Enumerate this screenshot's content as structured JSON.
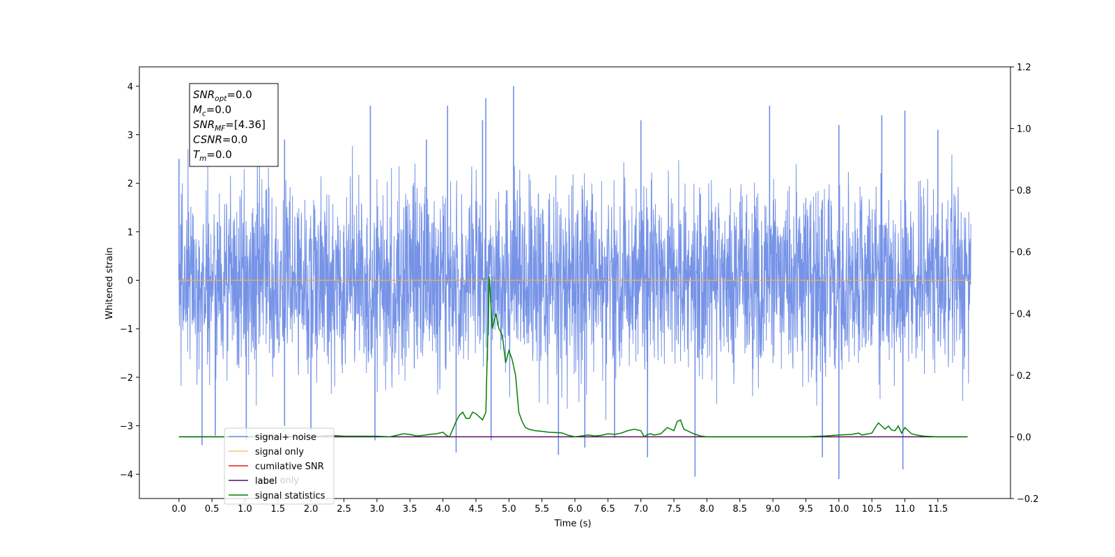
{
  "chart_data": {
    "type": "line",
    "title": "",
    "xlabel": "Time (s)",
    "ylabel": "Whitened strain",
    "y2label": "",
    "xlim": [
      -0.6,
      12.6
    ],
    "ylim": [
      -4.5,
      4.4
    ],
    "y2lim": [
      -0.2,
      1.2
    ],
    "x_ticks": [
      "0.0",
      "0.5",
      "1.0",
      "1.5",
      "2.0",
      "2.5",
      "3.0",
      "3.5",
      "4.0",
      "4.5",
      "5.0",
      "5.5",
      "6.0",
      "6.5",
      "7.0",
      "7.5",
      "8.0",
      "8.5",
      "9.0",
      "9.5",
      "10.0",
      "10.5",
      "11.0",
      "11.5"
    ],
    "y_ticks": [
      "4",
      "3",
      "2",
      "1",
      "0",
      "−1",
      "−2",
      "−3",
      "−4"
    ],
    "y2_ticks": [
      "1.2",
      "1.0",
      "0.8",
      "0.6",
      "0.4",
      "0.2",
      "0.0",
      "−0.2"
    ],
    "grid": false,
    "legend_position": "bottom-left",
    "colors": {
      "signal_noise": "#6f8de6",
      "signal_only": "#f5b041",
      "cumulative_snr": "#e41a1c",
      "label": "#5b0f5f",
      "statistics": "#008000"
    },
    "legend": [
      {
        "name": "signal+ noise",
        "color": "#6f8de6"
      },
      {
        "name": "signal only",
        "color": "#f5c27a"
      },
      {
        "name": "cumilative SNR",
        "color": "#e41a1c"
      },
      {
        "name": "label",
        "color": "#5b0f5f"
      },
      {
        "name": "signal statistics",
        "color": "#008000"
      }
    ],
    "overlapping_legend_text": "label only",
    "info_box": [
      {
        "base": "SNR",
        "sub": "opt",
        "value": "=0.0"
      },
      {
        "base": "M",
        "sub": "c",
        "value": "=0.0"
      },
      {
        "base": "SNR",
        "sub": "MF",
        "value": "=[4.36]"
      },
      {
        "base": "CSNR",
        "sub": "",
        "value": "=0.0"
      },
      {
        "base": "T",
        "sub": "m",
        "value": "=0.0"
      }
    ],
    "series": [
      {
        "name": "signal+ noise",
        "axis": "left",
        "x_range": [
          0.0,
          12.0
        ],
        "typical_amplitude": 1.7,
        "peaks": [
          {
            "x": 0.0,
            "y": 2.5
          },
          {
            "x": 0.35,
            "y": -3.4
          },
          {
            "x": 0.55,
            "y": -3.2
          },
          {
            "x": 1.02,
            "y": -3.3
          },
          {
            "x": 1.6,
            "y": 2.9
          },
          {
            "x": 1.6,
            "y": -3.0
          },
          {
            "x": 2.0,
            "y": -3.1
          },
          {
            "x": 2.9,
            "y": 3.6
          },
          {
            "x": 2.97,
            "y": -3.3
          },
          {
            "x": 3.75,
            "y": 2.9
          },
          {
            "x": 4.07,
            "y": 3.6
          },
          {
            "x": 4.2,
            "y": -3.55
          },
          {
            "x": 4.6,
            "y": 3.3
          },
          {
            "x": 4.65,
            "y": 3.75
          },
          {
            "x": 4.73,
            "y": -3.3
          },
          {
            "x": 5.07,
            "y": 4.0
          },
          {
            "x": 5.75,
            "y": -3.6
          },
          {
            "x": 6.15,
            "y": -3.45
          },
          {
            "x": 6.6,
            "y": -3.25
          },
          {
            "x": 7.0,
            "y": 3.3
          },
          {
            "x": 7.1,
            "y": -3.65
          },
          {
            "x": 7.82,
            "y": -4.05
          },
          {
            "x": 8.95,
            "y": 3.6
          },
          {
            "x": 9.75,
            "y": -3.65
          },
          {
            "x": 10.0,
            "y": -4.1
          },
          {
            "x": 10.0,
            "y": 3.2
          },
          {
            "x": 10.65,
            "y": 3.4
          },
          {
            "x": 10.97,
            "y": -3.9
          },
          {
            "x": 11.0,
            "y": 3.5
          },
          {
            "x": 11.5,
            "y": 3.1
          }
        ]
      },
      {
        "name": "signal only",
        "axis": "left",
        "x": [
          0.0,
          12.0
        ],
        "y": [
          0.0,
          0.0
        ]
      },
      {
        "name": "label",
        "axis": "right",
        "x": [
          0.0,
          11.95
        ],
        "y": [
          0.0,
          0.0
        ]
      },
      {
        "name": "signal statistics",
        "axis": "right",
        "x": [
          0.0,
          1.0,
          2.0,
          2.3,
          2.5,
          3.0,
          3.2,
          3.4,
          3.5,
          3.6,
          3.7,
          3.8,
          3.9,
          4.0,
          4.05,
          4.1,
          4.2,
          4.25,
          4.3,
          4.35,
          4.4,
          4.45,
          4.5,
          4.55,
          4.6,
          4.65,
          4.7,
          4.75,
          4.8,
          4.85,
          4.9,
          4.95,
          5.0,
          5.05,
          5.1,
          5.15,
          5.2,
          5.25,
          5.3,
          5.4,
          5.5,
          5.6,
          5.8,
          5.9,
          6.0,
          6.1,
          6.2,
          6.3,
          6.4,
          6.5,
          6.6,
          6.7,
          6.8,
          6.9,
          7.0,
          7.05,
          7.1,
          7.15,
          7.2,
          7.3,
          7.35,
          7.4,
          7.5,
          7.55,
          7.6,
          7.65,
          7.7,
          7.8,
          7.9,
          8.0,
          8.5,
          9.0,
          9.5,
          9.8,
          10.0,
          10.2,
          10.3,
          10.35,
          10.4,
          10.5,
          10.55,
          10.6,
          10.7,
          10.75,
          10.8,
          10.85,
          10.9,
          10.95,
          11.0,
          11.1,
          11.2,
          11.3,
          11.5,
          11.95
        ],
        "y": [
          0.0,
          0.0,
          0.0,
          0.005,
          0.002,
          0.002,
          0.0,
          0.01,
          0.008,
          0.003,
          0.005,
          0.008,
          0.01,
          0.015,
          0.005,
          0.0,
          0.05,
          0.07,
          0.08,
          0.06,
          0.06,
          0.08,
          0.075,
          0.065,
          0.055,
          0.08,
          0.52,
          0.35,
          0.4,
          0.35,
          0.33,
          0.24,
          0.28,
          0.25,
          0.2,
          0.08,
          0.05,
          0.03,
          0.025,
          0.02,
          0.018,
          0.015,
          0.013,
          0.005,
          0.0,
          0.003,
          0.006,
          0.003,
          0.005,
          0.01,
          0.008,
          0.012,
          0.02,
          0.025,
          0.02,
          0.0,
          0.008,
          0.01,
          0.006,
          0.01,
          0.02,
          0.03,
          0.02,
          0.05,
          0.055,
          0.025,
          0.02,
          0.01,
          0.003,
          0.0,
          0.0,
          0.0,
          0.0,
          0.003,
          0.006,
          0.008,
          0.012,
          0.006,
          0.008,
          0.012,
          0.03,
          0.045,
          0.025,
          0.035,
          0.022,
          0.02,
          0.035,
          0.012,
          0.03,
          0.01,
          0.005,
          0.002,
          0.0,
          0.0
        ]
      }
    ]
  }
}
